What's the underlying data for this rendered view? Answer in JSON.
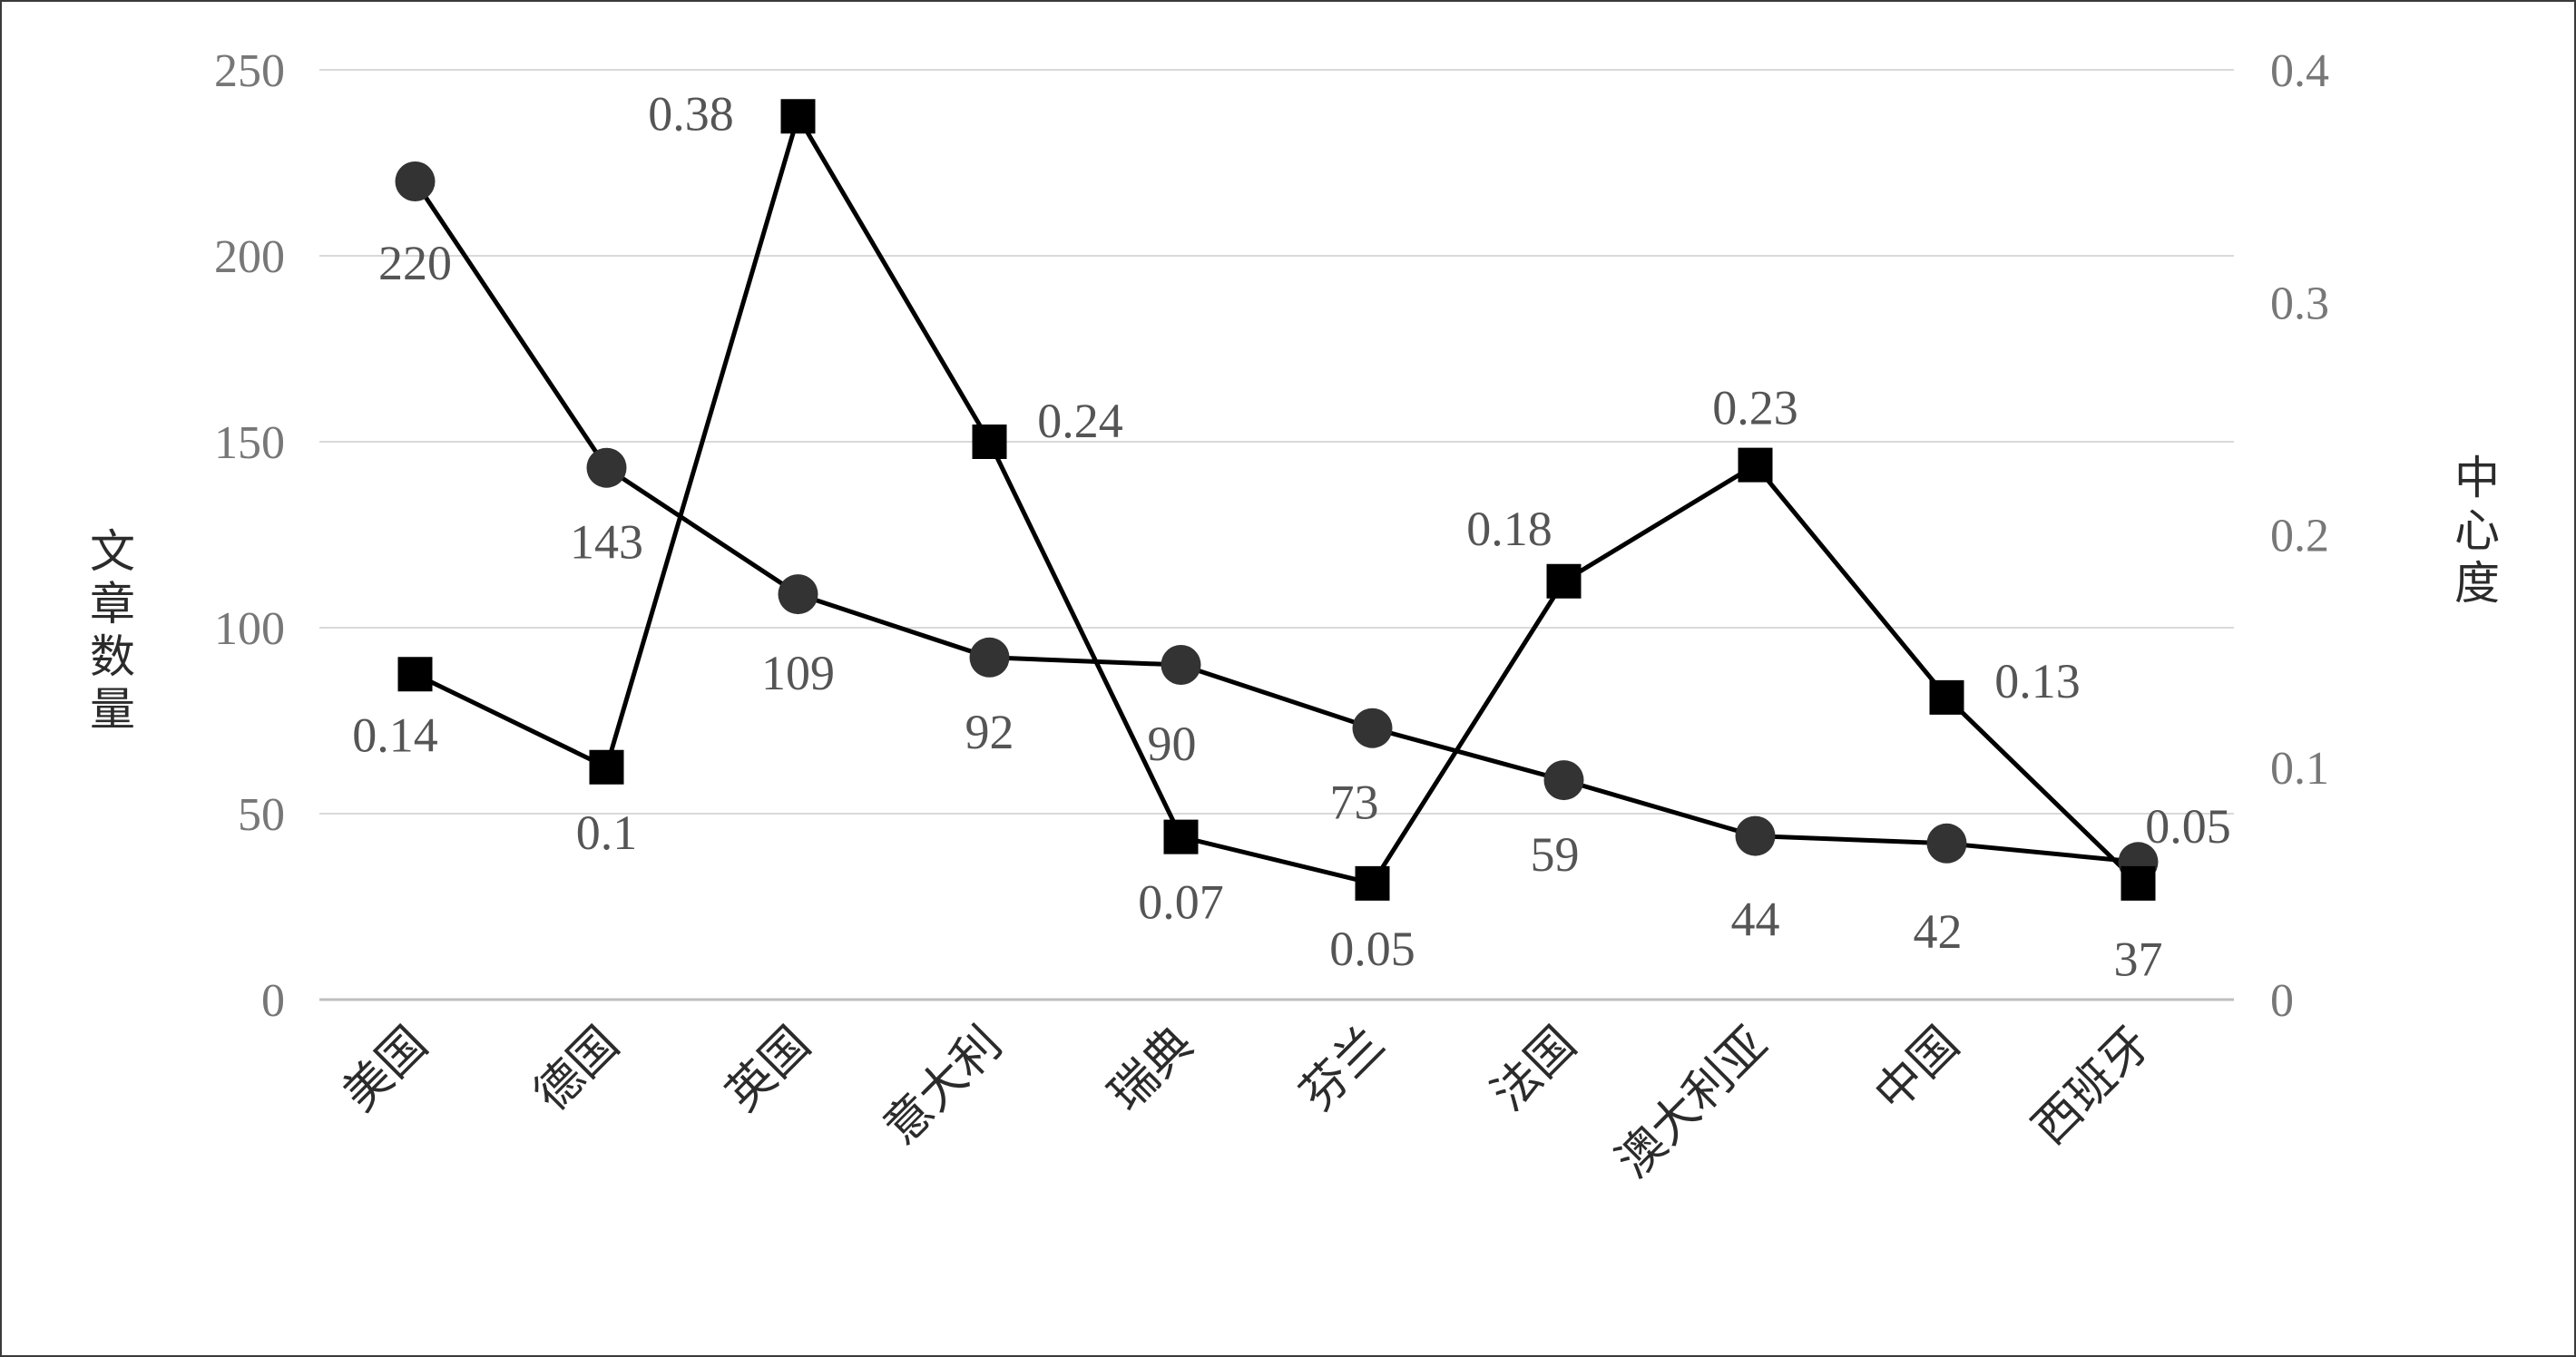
{
  "chart_data": {
    "type": "line",
    "categories": [
      "美国",
      "德国",
      "英国",
      "意大利",
      "瑞典",
      "芬兰",
      "法国",
      "澳大利亚",
      "中国",
      "西班牙"
    ],
    "series": [
      {
        "axis": "left",
        "marker": "circle",
        "values": [
          220,
          143,
          109,
          92,
          90,
          73,
          59,
          44,
          42,
          37
        ],
        "labels": [
          "220",
          "143",
          "109",
          "92",
          "90",
          "73",
          "59",
          "44",
          "42",
          "37"
        ]
      },
      {
        "axis": "right",
        "marker": "square",
        "values": [
          0.14,
          0.1,
          0.38,
          0.24,
          0.07,
          0.05,
          0.18,
          0.23,
          0.13,
          0.05
        ],
        "labels": [
          "0.14",
          "0.1",
          "0.38",
          "0.24",
          "0.07",
          "0.05",
          "0.18",
          "0.23",
          "0.13",
          "0.05"
        ]
      }
    ],
    "ylabel": "文章数量",
    "ylabel_right": "中心度",
    "ylim": [
      0,
      250
    ],
    "ylim_right": [
      0,
      0.4
    ],
    "yticks": [
      "0",
      "50",
      "100",
      "150",
      "200",
      "250"
    ],
    "yticks_right": [
      "0",
      "0.1",
      "0.2",
      "0.3",
      "0.4"
    ],
    "grid": true,
    "colors": {
      "line": "#000000",
      "circle_marker": "#333333",
      "square_marker": "#000000",
      "grid": "#d9d9d9",
      "tick_text": "#777777",
      "label_text": "#555555"
    }
  }
}
